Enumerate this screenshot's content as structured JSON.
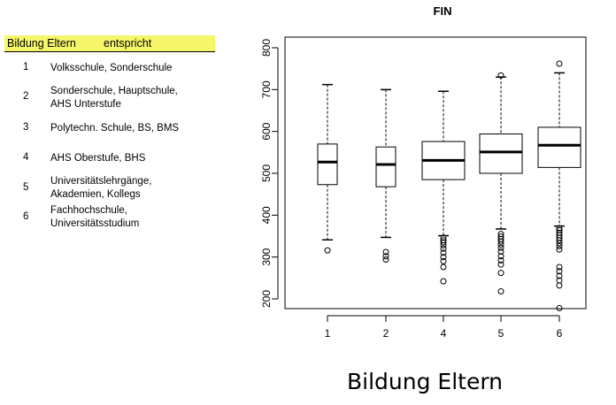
{
  "legend": {
    "header_col1": "Bildung Eltern",
    "header_col2": "entspricht",
    "rows": [
      {
        "code": "1",
        "line1": "Volksschule, Sonderschule",
        "line2": ""
      },
      {
        "code": "2",
        "line1": "Sonderschule, Hauptschule,",
        "line2": "AHS Unterstufe"
      },
      {
        "code": "3",
        "line1": "Polytechn. Schule, BS, BMS",
        "line2": ""
      },
      {
        "code": "4",
        "line1": "AHS Oberstufe, BHS",
        "line2": ""
      },
      {
        "code": "5",
        "line1": "Universitätslehrgänge,",
        "line2": "Akademien, Kollegs"
      },
      {
        "code": "6",
        "line1": "Fachhochschule,",
        "line2": "Universitätsstudium"
      }
    ]
  },
  "chart_data": {
    "type": "boxplot",
    "title": "FIN",
    "xlabel": "Bildung Eltern",
    "ylabel": "",
    "ylim": [
      180,
      820
    ],
    "yticks": [
      200,
      300,
      400,
      500,
      600,
      700,
      800
    ],
    "grid": false,
    "categories": [
      "1",
      "2",
      "4",
      "5",
      "6"
    ],
    "boxes": [
      {
        "category": "1",
        "whisker_low": 341,
        "q1": 473,
        "median": 527,
        "q3": 570,
        "whisker_high": 712,
        "outliers": [
          316
        ]
      },
      {
        "category": "2",
        "whisker_low": 347,
        "q1": 468,
        "median": 521,
        "q3": 563,
        "whisker_high": 700,
        "outliers": [
          312,
          302,
          294
        ]
      },
      {
        "category": "4",
        "whisker_low": 351,
        "q1": 485,
        "median": 531,
        "q3": 576,
        "whisker_high": 696,
        "outliers": [
          346,
          340,
          335,
          328,
          320,
          310,
          300,
          290,
          276,
          242
        ]
      },
      {
        "category": "5",
        "whisker_low": 367,
        "q1": 500,
        "median": 551,
        "q3": 594,
        "whisker_high": 730,
        "outliers": [
          734,
          355,
          349,
          343,
          337,
          330,
          322,
          313,
          302,
          292,
          282,
          262,
          218
        ]
      },
      {
        "category": "6",
        "whisker_low": 374,
        "q1": 514,
        "median": 567,
        "q3": 610,
        "whisker_high": 740,
        "outliers": [
          762,
          369,
          364,
          358,
          352,
          346,
          340,
          333,
          326,
          318,
          276,
          266,
          255,
          244,
          232,
          178
        ]
      }
    ]
  }
}
